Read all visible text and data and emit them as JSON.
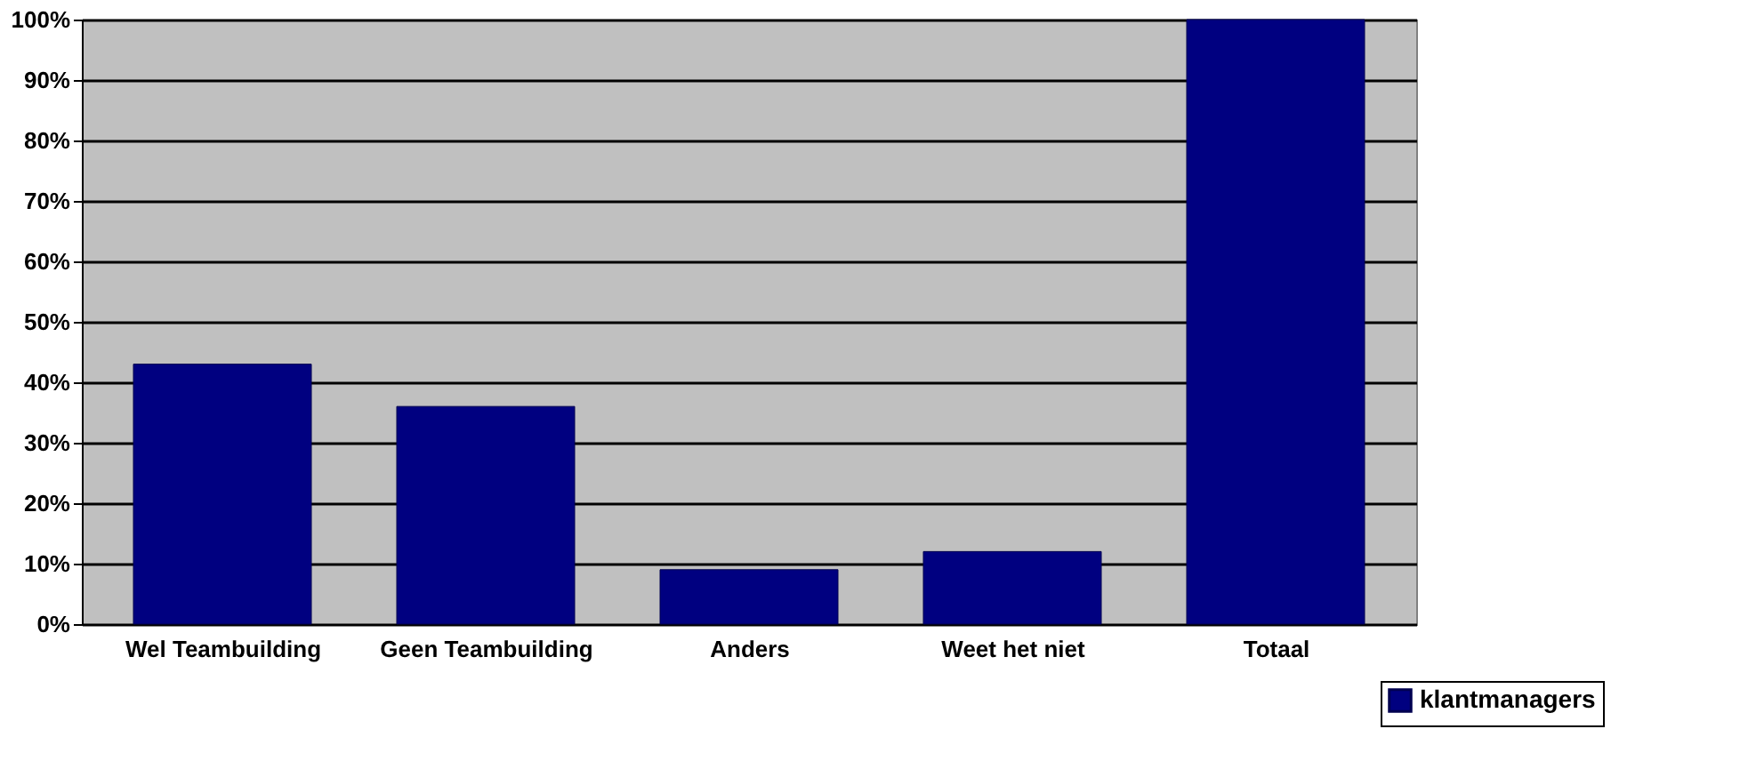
{
  "chart_data": {
    "type": "bar",
    "categories": [
      "Wel Teambuilding",
      "Geen Teambuilding",
      "Anders",
      "Weet het niet",
      "Totaal"
    ],
    "series": [
      {
        "name": "klantmanagers",
        "color": "#000080",
        "values": [
          43,
          36,
          9,
          12,
          100
        ]
      }
    ],
    "ylim": [
      0,
      100
    ],
    "yticks": [
      {
        "value": 0,
        "label": "0%"
      },
      {
        "value": 10,
        "label": "10%"
      },
      {
        "value": 20,
        "label": "20%"
      },
      {
        "value": 30,
        "label": "30%"
      },
      {
        "value": 40,
        "label": "40%"
      },
      {
        "value": 50,
        "label": "50%"
      },
      {
        "value": 60,
        "label": "60%"
      },
      {
        "value": 70,
        "label": "70%"
      },
      {
        "value": 80,
        "label": "80%"
      },
      {
        "value": 90,
        "label": "90%"
      },
      {
        "value": 100,
        "label": "100%"
      }
    ],
    "grid": "y",
    "legend": "bottom right"
  }
}
